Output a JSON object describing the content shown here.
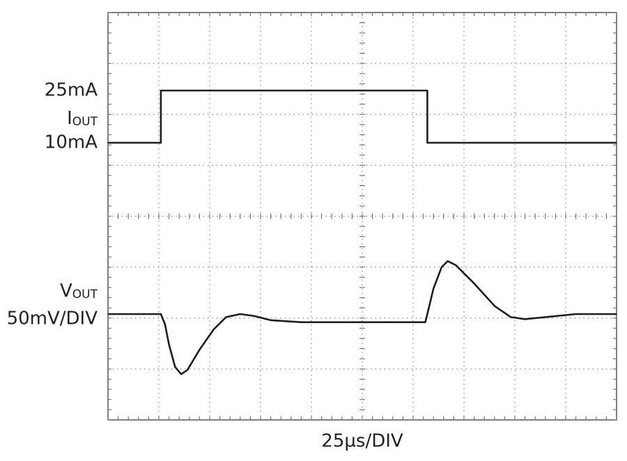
{
  "chart_data": {
    "type": "line",
    "grid": true,
    "x_label": "25µs/DIV",
    "xlim": [
      0,
      250
    ],
    "series": [
      {
        "name": "I",
        "sub": "OUT",
        "color": "#1e1e1e",
        "ticks": [
          {
            "value": 25,
            "label": "25mA"
          },
          {
            "value": 10,
            "label": "10mA"
          }
        ],
        "x": [
          0,
          26,
          26,
          157,
          157,
          250
        ],
        "values": [
          10,
          10,
          25,
          25,
          10,
          10
        ]
      },
      {
        "name": "V",
        "sub": "OUT",
        "scale": "50mV/DIV",
        "color": "#1e1e1e",
        "x": [
          0,
          26,
          28,
          30,
          33,
          36,
          39,
          45,
          52,
          58,
          65,
          72,
          80,
          95,
          156,
          157,
          160,
          164,
          167,
          171,
          180,
          190,
          198,
          205,
          215,
          230,
          250
        ],
        "values": [
          0,
          0,
          -10,
          -30,
          -52,
          -59,
          -55,
          -35,
          -15,
          -3,
          0,
          -2,
          -6,
          -8,
          -8,
          0,
          25,
          46,
          52,
          48,
          30,
          8,
          -3,
          -5,
          -3,
          0,
          0
        ]
      }
    ]
  }
}
